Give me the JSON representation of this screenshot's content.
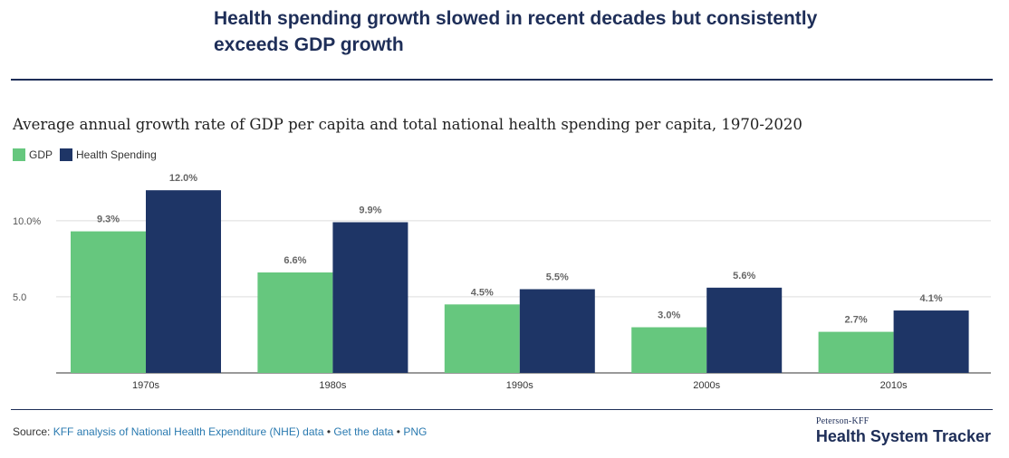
{
  "headline": "Health spending growth slowed in recent decades but consistently exceeds GDP growth",
  "subtitle": "Average annual growth rate of GDP per capita and total national health spending per capita, 1970-2020",
  "legend": [
    {
      "label": "GDP",
      "color": "#66c77e"
    },
    {
      "label": "Health Spending",
      "color": "#1e3566"
    }
  ],
  "chart_data": {
    "type": "bar",
    "categories": [
      "1970s",
      "1980s",
      "1990s",
      "2000s",
      "2010s"
    ],
    "series": [
      {
        "name": "GDP",
        "color": "#66c77e",
        "values": [
          9.3,
          6.6,
          4.5,
          3.0,
          2.7
        ],
        "labels": [
          "9.3%",
          "6.6%",
          "4.5%",
          "3.0%",
          "2.7%"
        ]
      },
      {
        "name": "Health Spending",
        "color": "#1e3566",
        "values": [
          12.0,
          9.9,
          5.5,
          5.6,
          4.1
        ],
        "labels": [
          "12.0%",
          "9.9%",
          "5.5%",
          "5.6%",
          "4.1%"
        ]
      }
    ],
    "yticks": [
      5.0,
      10.0
    ],
    "ytick_labels": [
      "5.0",
      "10.0%"
    ],
    "ylim": [
      0,
      13.2
    ],
    "grid": true,
    "legend_position": "top-left"
  },
  "footer": {
    "source_prefix": "Source:",
    "source_link": "KFF analysis of National Health Expenditure (NHE) data",
    "sep1": "•",
    "get_data": "Get the data",
    "sep2": "•",
    "png": "PNG"
  },
  "brand": {
    "small": "Peterson-KFF",
    "big": "Health System Tracker"
  }
}
